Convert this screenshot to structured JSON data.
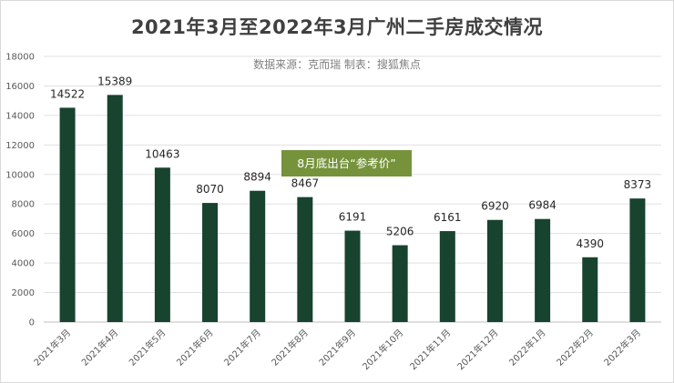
{
  "chart_data": {
    "type": "bar",
    "title": "2021年3月至2022年3月广州二手房成交情况",
    "subtitle": "数据来源：克而瑞  制表：搜狐焦点",
    "categories": [
      "2021年3月",
      "2021年4月",
      "2021年5月",
      "2021年6月",
      "2021年7月",
      "2021年8月",
      "2021年9月",
      "2021年10月",
      "2021年11月",
      "2021年12月",
      "2022年1月",
      "2022年2月",
      "2022年3月"
    ],
    "values": [
      14522,
      15389,
      10463,
      8070,
      8894,
      8467,
      6191,
      5206,
      6161,
      6920,
      6984,
      4390,
      8373
    ],
    "ylim": [
      0,
      18000
    ],
    "yticks": [
      0,
      2000,
      4000,
      6000,
      8000,
      10000,
      12000,
      14000,
      16000,
      18000
    ],
    "grid": true,
    "bar_color": "#17432f",
    "annotation": "8月底出台“参考价”",
    "annotation_color": "#76933c"
  }
}
